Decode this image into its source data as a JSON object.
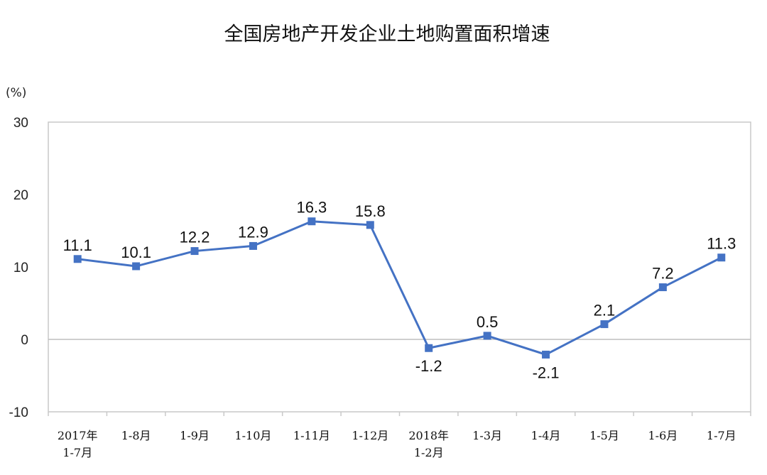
{
  "chart_data": {
    "type": "line",
    "title": "全国房地产开发企业土地购置面积增速",
    "ylabel": "(%)",
    "xlabel": "",
    "ylim": [
      -10,
      30
    ],
    "yticks": [
      "30",
      "20",
      "10",
      "0",
      "-10"
    ],
    "grid": false,
    "legend": "none",
    "color": "#4472C4",
    "categories": [
      [
        "2017年",
        "1-7月"
      ],
      [
        "1-8月"
      ],
      [
        "1-9月"
      ],
      [
        "1-10月"
      ],
      [
        "1-11月"
      ],
      [
        "1-12月"
      ],
      [
        "2018年",
        "1-2月"
      ],
      [
        "1-3月"
      ],
      [
        "1-4月"
      ],
      [
        "1-5月"
      ],
      [
        "1-6月"
      ],
      [
        "1-7月"
      ]
    ],
    "values": [
      11.1,
      10.1,
      12.2,
      12.9,
      16.3,
      15.8,
      -1.2,
      0.5,
      -2.1,
      2.1,
      7.2,
      11.3
    ],
    "data_labels": [
      "11.1",
      "10.1",
      "12.2",
      "12.9",
      "16.3",
      "15.8",
      "-1.2",
      "0.5",
      "-2.1",
      "2.1",
      "7.2",
      "11.3"
    ]
  }
}
